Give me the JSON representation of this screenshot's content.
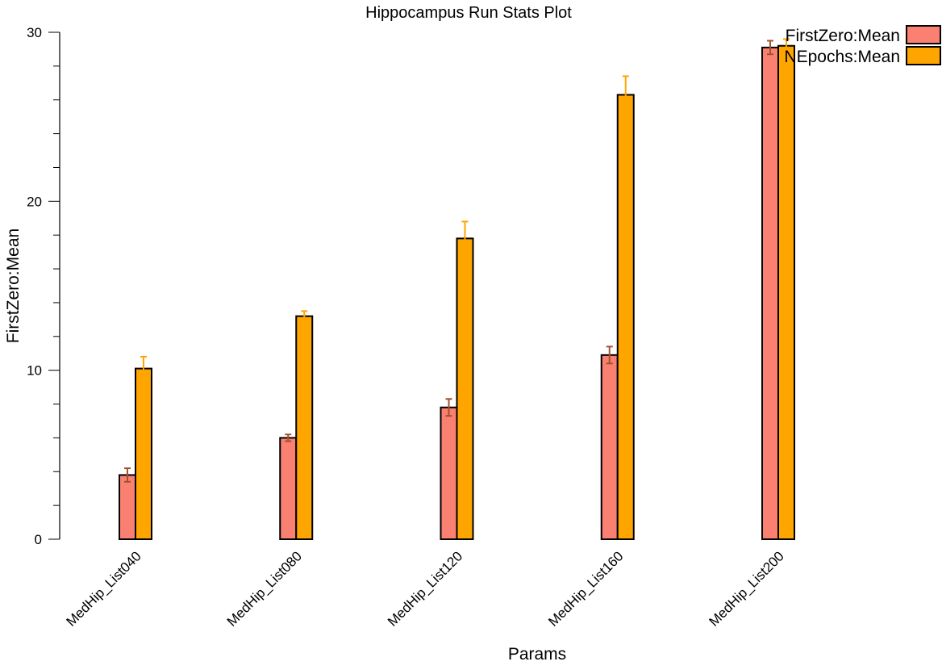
{
  "chart_data": {
    "type": "bar",
    "title": "Hippocampus Run Stats Plot",
    "xlabel": "Params",
    "ylabel": "FirstZero:Mean",
    "ylim": [
      0,
      30
    ],
    "yticks": [
      0,
      10,
      20,
      30
    ],
    "grid": false,
    "legend_position": "top-right",
    "categories": [
      "MedHip_List040",
      "MedHip_List080",
      "MedHip_List120",
      "MedHip_List160",
      "MedHip_List200"
    ],
    "series": [
      {
        "name": "FirstZero:Mean",
        "color": "#fa8072",
        "values": [
          3.8,
          6.0,
          7.8,
          10.9,
          29.1
        ],
        "error": [
          0.4,
          0.2,
          0.5,
          0.5,
          0.4
        ]
      },
      {
        "name": "NEpochs:Mean",
        "color": "#ffa500",
        "values": [
          10.1,
          13.2,
          17.8,
          26.3,
          29.2
        ],
        "error": [
          0.7,
          0.3,
          1.0,
          1.1,
          0.4
        ]
      }
    ]
  }
}
